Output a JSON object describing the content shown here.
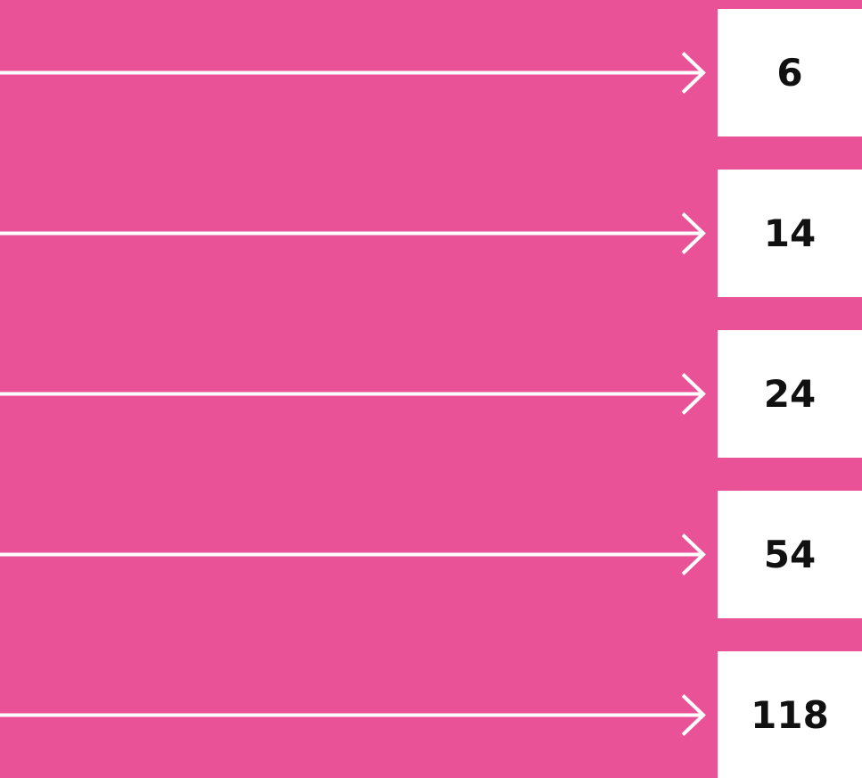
{
  "items": [
    {
      "value": 6
    },
    {
      "value": 14
    },
    {
      "value": 24
    },
    {
      "value": 54
    },
    {
      "value": 118
    }
  ]
}
